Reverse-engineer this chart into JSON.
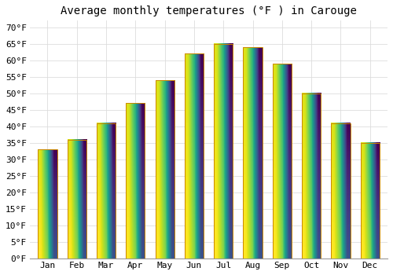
{
  "title": "Average monthly temperatures (°F ) in Carouge",
  "months": [
    "Jan",
    "Feb",
    "Mar",
    "Apr",
    "May",
    "Jun",
    "Jul",
    "Aug",
    "Sep",
    "Oct",
    "Nov",
    "Dec"
  ],
  "values": [
    33,
    36,
    41,
    47,
    54,
    62,
    65,
    64,
    59,
    50,
    41,
    35
  ],
  "bar_color_top": "#FFD040",
  "bar_color_bottom": "#F0A000",
  "bar_edge_color": "#CC8800",
  "ylim": [
    0,
    72
  ],
  "yticks": [
    0,
    5,
    10,
    15,
    20,
    25,
    30,
    35,
    40,
    45,
    50,
    55,
    60,
    65,
    70
  ],
  "ylabel_suffix": "°F",
  "background_color": "#FFFFFF",
  "grid_color": "#DDDDDD",
  "title_fontsize": 10,
  "tick_fontsize": 8,
  "font_family": "monospace"
}
